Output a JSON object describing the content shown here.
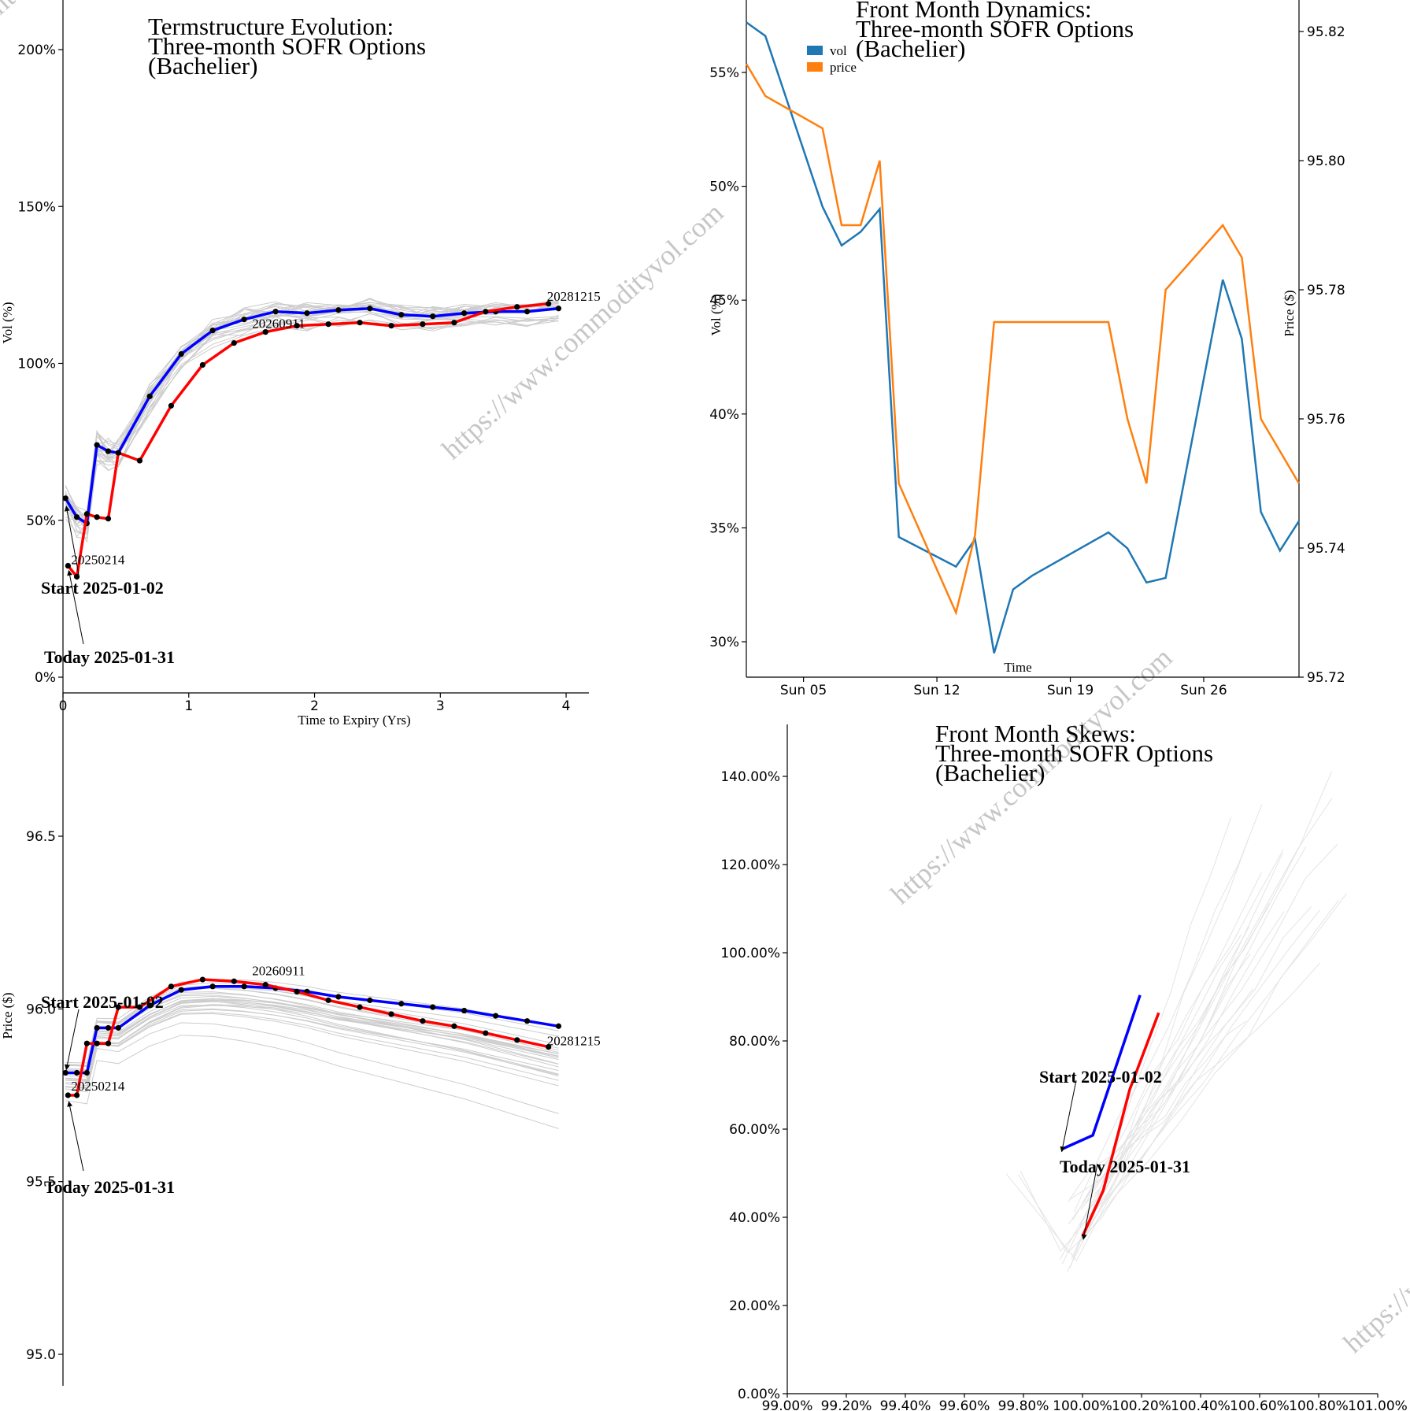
{
  "watermark": "https://www.commodityvol.com",
  "colors": {
    "start": "#0000ff",
    "today": "#ff0000",
    "history": "#cccccc",
    "vol": "#1f77b4",
    "price": "#ff7f0e"
  },
  "chart_data": [
    {
      "id": "termstructure_vol",
      "type": "line",
      "title": [
        "Termstructure Evolution:",
        "Three-month SOFR Options",
        "(Bachelier)"
      ],
      "xlabel": "Time to Expiry (Yrs)",
      "ylabel": "Vol (%)",
      "xlim": [
        0,
        4.35
      ],
      "ylim": [
        0,
        2.1
      ],
      "xticks": [
        0,
        1,
        2,
        3,
        4
      ],
      "xtick_labels": [
        "0",
        "1",
        "2",
        "3",
        "4"
      ],
      "yticks": [
        0,
        0.5,
        1.0,
        1.5,
        2.0
      ],
      "ytick_labels": [
        "0%",
        "50%",
        "100%",
        "150%",
        "200%"
      ],
      "series": [
        {
          "name": "Start 2025-01-02",
          "x": [
            0.02,
            0.11,
            0.19,
            0.27,
            0.36,
            0.44,
            0.69,
            0.94,
            1.19,
            1.44,
            1.69,
            1.94,
            2.19,
            2.44,
            2.69,
            2.94,
            3.19,
            3.44,
            3.69,
            3.94
          ],
          "y": [
            0.57,
            0.51,
            0.49,
            0.74,
            0.72,
            0.715,
            0.895,
            1.03,
            1.105,
            1.14,
            1.165,
            1.16,
            1.17,
            1.175,
            1.155,
            1.15,
            1.16,
            1.165,
            1.165,
            1.175
          ]
        },
        {
          "name": "Today 2025-01-31",
          "x": [
            0.04,
            0.11,
            0.19,
            0.27,
            0.36,
            0.44,
            0.61,
            0.86,
            1.11,
            1.36,
            1.61,
            1.86,
            2.11,
            2.36,
            2.61,
            2.86,
            3.11,
            3.36,
            3.61,
            3.86
          ],
          "y": [
            0.355,
            0.32,
            0.52,
            0.51,
            0.505,
            0.715,
            0.69,
            0.865,
            0.995,
            1.065,
            1.1,
            1.12,
            1.125,
            1.13,
            1.12,
            1.125,
            1.13,
            1.165,
            1.18,
            1.19
          ]
        }
      ],
      "annotations": [
        {
          "text": "20250214",
          "x": 0.04,
          "y": 0.355
        },
        {
          "text": "20260911",
          "x": 1.61,
          "y": 1.1
        },
        {
          "text": "20281215",
          "x": 3.86,
          "y": 1.19
        },
        {
          "text": "Start 2025-01-02",
          "x": 0.02,
          "y": 0.57
        },
        {
          "text": "Today 2025-01-31",
          "x": 0.04,
          "y": 0.355
        }
      ]
    },
    {
      "id": "front_month_dynamics",
      "type": "line",
      "title": [
        "Front Month Dynamics:",
        "Three-month SOFR Options",
        "(Bachelier)"
      ],
      "xlabel": "Time",
      "ylabel": "Vol (%)",
      "ylabel_right": "Price ($)",
      "xlim": [
        "2025-01-02",
        "2025-01-31"
      ],
      "xticks": [
        "2025-01-05",
        "2025-01-12",
        "2025-01-19",
        "2025-01-26"
      ],
      "xtick_labels": [
        "Sun 05",
        "Sun 12",
        "Sun 19",
        "Sun 26"
      ],
      "ylim": [
        0.285,
        0.58
      ],
      "yticks": [
        0.3,
        0.35,
        0.4,
        0.45,
        0.5,
        0.55
      ],
      "ytick_labels": [
        "30%",
        "35%",
        "40%",
        "45%",
        "50%",
        "55%"
      ],
      "ylim_right": [
        95.72,
        95.825
      ],
      "yticks_right": [
        95.72,
        95.74,
        95.76,
        95.78,
        95.8,
        95.82
      ],
      "ytick_labels_right": [
        "95.72",
        "95.74",
        "95.76",
        "95.78",
        "95.80",
        "95.82"
      ],
      "legend": {
        "position": "top-left",
        "entries": [
          "vol",
          "price"
        ]
      },
      "series": [
        {
          "name": "vol",
          "axis": "left",
          "x": [
            "2025-01-02",
            "2025-01-03",
            "2025-01-06",
            "2025-01-07",
            "2025-01-08",
            "2025-01-09",
            "2025-01-10",
            "2025-01-13",
            "2025-01-14",
            "2025-01-15",
            "2025-01-16",
            "2025-01-17",
            "2025-01-21",
            "2025-01-22",
            "2025-01-23",
            "2025-01-24",
            "2025-01-27",
            "2025-01-28",
            "2025-01-29",
            "2025-01-30",
            "2025-01-31"
          ],
          "y": [
            0.572,
            0.566,
            0.491,
            0.474,
            0.48,
            0.49,
            0.346,
            0.333,
            0.345,
            0.295,
            0.323,
            0.329,
            0.348,
            0.341,
            0.326,
            0.328,
            0.459,
            0.433,
            0.357,
            0.34,
            0.353
          ]
        },
        {
          "name": "price",
          "axis": "right",
          "x": [
            "2025-01-02",
            "2025-01-03",
            "2025-01-06",
            "2025-01-07",
            "2025-01-08",
            "2025-01-09",
            "2025-01-10",
            "2025-01-13",
            "2025-01-14",
            "2025-01-15",
            "2025-01-16",
            "2025-01-17",
            "2025-01-20",
            "2025-01-21",
            "2025-01-22",
            "2025-01-23",
            "2025-01-24",
            "2025-01-27",
            "2025-01-28",
            "2025-01-29",
            "2025-01-30",
            "2025-01-31"
          ],
          "y": [
            95.815,
            95.81,
            95.805,
            95.79,
            95.79,
            95.8,
            95.75,
            95.73,
            95.742,
            95.775,
            95.775,
            95.775,
            95.775,
            95.775,
            95.76,
            95.75,
            95.78,
            95.79,
            95.785,
            95.76,
            95.755,
            95.75
          ]
        }
      ]
    },
    {
      "id": "termstructure_price",
      "type": "line",
      "title": "",
      "xlabel": "",
      "ylabel": "Price ($)",
      "xlim": [
        0,
        4.35
      ],
      "ylim": [
        94.95,
        96.95
      ],
      "yticks": [
        95.0,
        95.5,
        96.0,
        96.5
      ],
      "ytick_labels": [
        "95.0",
        "95.5",
        "96.0",
        "96.5"
      ],
      "series": [
        {
          "name": "Start 2025-01-02",
          "x": [
            0.02,
            0.11,
            0.19,
            0.27,
            0.36,
            0.44,
            0.69,
            0.94,
            1.19,
            1.44,
            1.69,
            1.94,
            2.19,
            2.44,
            2.69,
            2.94,
            3.19,
            3.44,
            3.69,
            3.94
          ],
          "y": [
            95.815,
            95.815,
            95.815,
            95.945,
            95.945,
            95.945,
            96.01,
            96.055,
            96.065,
            96.065,
            96.06,
            96.05,
            96.035,
            96.025,
            96.015,
            96.005,
            95.995,
            95.98,
            95.965,
            95.95
          ]
        },
        {
          "name": "Today 2025-01-31",
          "x": [
            0.04,
            0.11,
            0.19,
            0.27,
            0.36,
            0.44,
            0.61,
            0.86,
            1.11,
            1.36,
            1.61,
            1.86,
            2.11,
            2.36,
            2.61,
            2.86,
            3.11,
            3.36,
            3.61,
            3.86
          ],
          "y": [
            95.75,
            95.75,
            95.9,
            95.9,
            95.9,
            96.005,
            96.005,
            96.065,
            96.085,
            96.08,
            96.07,
            96.05,
            96.025,
            96.005,
            95.985,
            95.965,
            95.95,
            95.93,
            95.91,
            95.89
          ]
        }
      ],
      "annotations": [
        {
          "text": "20250214",
          "x": 0.04,
          "y": 95.75
        },
        {
          "text": "20260911",
          "x": 1.61,
          "y": 96.07
        },
        {
          "text": "20281215",
          "x": 3.86,
          "y": 95.89
        },
        {
          "text": "Start 2025-01-02",
          "x": 0.02,
          "y": 95.815
        },
        {
          "text": "Today 2025-01-31",
          "x": 0.04,
          "y": 95.75
        }
      ]
    },
    {
      "id": "front_month_skews",
      "type": "line",
      "title": [
        "Front Month Skews:",
        "Three-month SOFR Options",
        "(Bachelier)"
      ],
      "xlabel": "",
      "ylabel": "",
      "xlim": [
        0.99,
        1.01
      ],
      "ylim": [
        0,
        1.52
      ],
      "xticks": [
        0.99,
        0.992,
        0.994,
        0.996,
        0.998,
        1.0,
        1.002,
        1.004,
        1.006,
        1.008,
        1.01
      ],
      "xtick_labels": [
        "99.00%",
        "99.20%",
        "99.40%",
        "99.60%",
        "99.80%",
        "100.00%",
        "100.20%",
        "100.40%",
        "100.60%",
        "100.80%",
        "101.00%"
      ],
      "yticks": [
        0,
        0.2,
        0.4,
        0.6,
        0.8,
        1.0,
        1.2,
        1.4
      ],
      "ytick_labels": [
        "0.00%",
        "20.00%",
        "40.00%",
        "60.00%",
        "80.00%",
        "100.00%",
        "120.00%",
        "140.00%"
      ],
      "series": [
        {
          "name": "Start 2025-01-02",
          "x": [
            0.99935,
            1.00035,
            1.00195
          ],
          "y": [
            0.556,
            0.586,
            0.904
          ]
        },
        {
          "name": "Today 2025-01-31",
          "x": [
            1.0,
            1.0007,
            1.0016,
            1.00258
          ],
          "y": [
            0.357,
            0.46,
            0.69,
            0.864
          ]
        }
      ],
      "annotations": [
        {
          "text": "Start 2025-01-02",
          "x": 0.99935,
          "y": 0.556
        },
        {
          "text": "Today 2025-01-31",
          "x": 1.0,
          "y": 0.357
        }
      ]
    }
  ]
}
